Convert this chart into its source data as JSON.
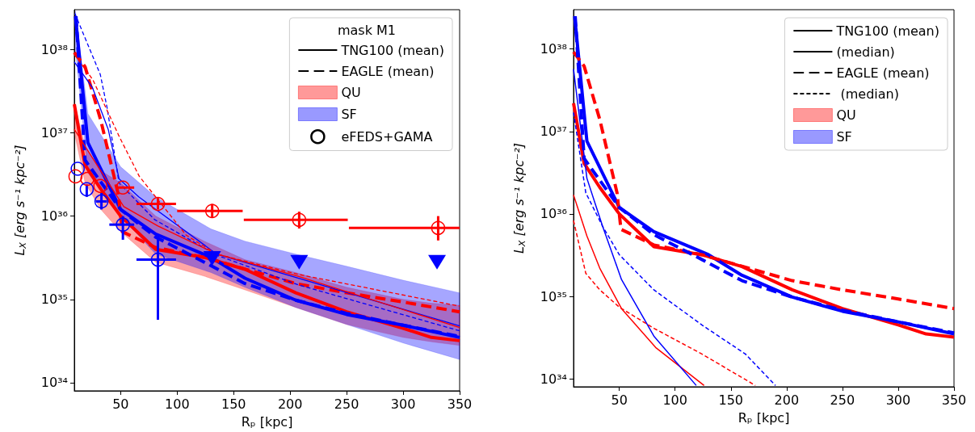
{
  "chart_data": [
    {
      "type": "line",
      "xlabel": "Rₚ [kpc]",
      "ylabel": "L$_{X}$ [erg s⁻¹ kpc⁻²]",
      "log": "y",
      "marker": "none",
      "legend": "top right",
      "legend_title": "mask M1",
      "xlim": [
        9,
        350
      ],
      "xticks": [
        50,
        100,
        150,
        200,
        250,
        300,
        350
      ],
      "ylim": [
        8e+33,
        3e+38
      ],
      "yticks": [
        {
          "value": 1e+34,
          "label": "10³⁴"
        },
        {
          "value": 1e+35,
          "label": "10³⁵"
        },
        {
          "value": 1e+36,
          "label": "10³⁶"
        },
        {
          "value": 1e+37,
          "label": "10³⁷"
        },
        {
          "value": 1e+38,
          "label": "10³⁸"
        }
      ],
      "series": [
        {
          "name": "TNG100 (mean)",
          "color": "#000000",
          "type": "line",
          "line_style": "solid"
        },
        {
          "name": "EAGLE (mean)",
          "color": "#000000",
          "type": "line",
          "line_style": "dashed"
        },
        {
          "name": "QU",
          "color": "#ff0000",
          "type": "line",
          "line_style": "solid",
          "x": [
            9,
            18.5,
            32.5,
            50,
            81,
            124,
            160,
            205,
            250,
            300,
            325,
            350
          ],
          "values": [
            2.2e+37,
            4.1e+36,
            2.1e+36,
            1e+36,
            4e+35,
            3.2e+35,
            2.3e+35,
            1.2e+35,
            7.1e+34,
            4.5e+34,
            3.5e+34,
            3.2e+34
          ],
          "lower": [
            1e+37,
            2.5e+36,
            1.2e+36,
            6.5e+35,
            2.8e+35,
            1.9e+35,
            1.3e+35,
            8e+34,
            5e+34,
            3.5e+34,
            3.1e+34,
            2.8e+34
          ],
          "upper": [
            2.3e+37,
            7e+36,
            3.5e+36,
            2.5e+36,
            1e+36,
            5e+35,
            3e+35,
            2.1e+35,
            1.4e+35,
            1e+35,
            9e+34,
            8.5e+34
          ]
        },
        {
          "name": "SF",
          "color": "#0000ff",
          "type": "line",
          "line_style": "solid",
          "x": [
            10,
            21,
            50,
            81,
            130,
            160,
            205,
            250,
            300,
            350
          ],
          "values": [
            2.5e+38,
            7.6e+36,
            1.2e+36,
            6.1e+35,
            3.2e+35,
            1.8e+35,
            9.8e+34,
            6.6e+34,
            4.9e+34,
            3.5e+34
          ],
          "lower": [
            1e+38,
            3.3e+36,
            1e+36,
            3.5e+35,
            2.1e+35,
            1.4e+35,
            8e+34,
            5e+34,
            3e+34,
            1.9e+34
          ],
          "upper": [
            2.9e+38,
            1.7e+37,
            3.9e+36,
            1.7e+36,
            7e+35,
            5e+35,
            3.5e+35,
            2.5e+35,
            1.7e+35,
            1.2e+35
          ]
        },
        {
          "color": "#ff0000",
          "type": "line",
          "line_style": "dashed",
          "x": [
            9,
            18.5,
            32.5,
            48,
            51.5,
            81,
            124,
            205,
            250,
            300,
            350
          ],
          "values": [
            9.2e+37,
            6.2e+37,
            1.4e+37,
            1.8e+36,
            6.5e+35,
            4.2e+35,
            3.2e+35,
            1.55e+35,
            1.2e+35,
            9.3e+34,
            7.1e+34
          ]
        },
        {
          "color": "#0000ff",
          "type": "line",
          "line_style": "dashed",
          "x": [
            10.5,
            18.5,
            50,
            81,
            124,
            160,
            205,
            250,
            300,
            350
          ],
          "values": [
            2.5e+38,
            4.7e+36,
            1.2e+36,
            5.6e+35,
            2.8e+35,
            1.55e+35,
            9.8e+34,
            6.8e+34,
            4.9e+34,
            3.6e+34
          ]
        },
        {
          "color": "#0000ff",
          "type": "line",
          "line_style": "solid",
          "x": [
            9,
            25,
            39,
            48.6,
            66,
            135,
            207,
            350
          ],
          "values": [
            7.1e+37,
            3.5e+37,
            1.1e+37,
            2.8e+36,
            1.7e+36,
            3.5e+35,
            1.8e+35,
            4.8e+34
          ]
        },
        {
          "color": "#0000ff",
          "type": "line",
          "line_style": "dashed",
          "x": [
            9.5,
            32,
            38,
            48.6,
            80,
            135,
            207,
            350
          ],
          "values": [
            2.7e+38,
            5e+37,
            2e+37,
            2.5e+36,
            9.1e+35,
            3.4e+35,
            1.5e+35,
            4.2e+34
          ]
        },
        {
          "color": "#ff0000",
          "type": "line",
          "line_style": "solid",
          "x": [
            9,
            33.5,
            52.8,
            83,
            135,
            207,
            350
          ],
          "values": [
            1.1e+37,
            3.3e+36,
            1.3e+36,
            7.6e+35,
            3.5e+35,
            1.9e+35,
            4.6e+34
          ]
        },
        {
          "color": "#ff0000",
          "type": "line",
          "line_style": "dashed",
          "x": [
            9,
            25.5,
            48.6,
            66.5,
            108,
            135,
            207,
            350
          ],
          "values": [
            8.8e+37,
            4.3e+37,
            9.1e+36,
            3e+36,
            5.9e+35,
            3.5e+35,
            2e+35,
            8.3e+34
          ]
        },
        {
          "name": "eFEDS+GAMA",
          "color": "#000000",
          "type": "scatter",
          "marker": "circle"
        },
        {
          "color": "#ff0000",
          "type": "scatter",
          "marker": "circle",
          "x": [
            10,
            20.5,
            32,
            52,
            83,
            131,
            208,
            331
          ],
          "values": [
            3e+36,
            2.8e+36,
            2.3e+36,
            2.2e+36,
            1.4e+36,
            1.15e+36,
            9e+35,
            7.2e+35
          ],
          "xerrors": [
            null,
            null,
            null,
            [
              47,
              62
            ],
            [
              64,
              99
            ],
            [
              100,
              158
            ],
            [
              159,
              251
            ],
            [
              252,
              350
            ]
          ],
          "errors": [
            null,
            null,
            null,
            null,
            [
              1.2e+36,
              1.65e+36
            ],
            [
              9.5e+35,
              1.4e+36
            ],
            [
              7.1e+35,
              1.13e+36
            ],
            [
              5.1e+35,
              1e+36
            ]
          ]
        },
        {
          "color": "#0000ff",
          "type": "scatter",
          "marker": "circle",
          "x": [
            12,
            20,
            33,
            52,
            83
          ],
          "values": [
            3.7e+36,
            2.1e+36,
            1.5e+36,
            7.9e+35,
            3e+35
          ],
          "xerrors": [
            null,
            null,
            [
              28,
              38
            ],
            [
              40,
              62
            ],
            [
              64,
              99
            ]
          ],
          "errors": [
            null,
            [
              1.7e+36,
              2.4e+36
            ],
            [
              1.2e+36,
              1.9e+36
            ],
            [
              5.2e+35,
              1e+36
            ],
            [
              5.7e+34,
              5.7e+35
            ]
          ]
        },
        {
          "color": "#0000ff",
          "type": "scatter",
          "marker": "triangle",
          "x": [
            131,
            208,
            330
          ],
          "values": [
            3.1e+35,
            2.8e+35,
            2.8e+35
          ]
        }
      ]
    },
    {
      "type": "line",
      "xlabel": "Rₚ [kpc]",
      "ylabel": "L$_{X}$ [erg s⁻¹ kpc⁻²]",
      "log": "y",
      "marker": "none",
      "legend": "top right",
      "xlim": [
        9,
        350
      ],
      "xticks": [
        50,
        100,
        150,
        200,
        250,
        300,
        350
      ],
      "ylim": [
        8e+33,
        3e+38
      ],
      "yticks": [
        {
          "value": 1e+34,
          "label": "10³⁴"
        },
        {
          "value": 1e+35,
          "label": "10³⁵"
        },
        {
          "value": 1e+36,
          "label": "10³⁶"
        },
        {
          "value": 1e+37,
          "label": "10³⁷"
        },
        {
          "value": 1e+38,
          "label": "10³⁸"
        }
      ],
      "series": [
        {
          "name": "TNG100 (mean)",
          "color": "#000000",
          "type": "line",
          "line_style": "solid"
        },
        {
          "name": "(median)",
          "color": "#000000",
          "type": "line",
          "line_style": "solid"
        },
        {
          "name": "EAGLE (mean)",
          "color": "#000000",
          "type": "line",
          "line_style": "dashed"
        },
        {
          "name": " (median)",
          "color": "#000000",
          "type": "line",
          "line_style": "dashed"
        },
        {
          "name": "QU",
          "color": "#ff0000",
          "type": "line",
          "line_style": "solid",
          "x": [
            9,
            18.5,
            32.5,
            50,
            81,
            124,
            160,
            205,
            250,
            300,
            325,
            350
          ],
          "values": [
            2.2e+37,
            4.1e+36,
            2.1e+36,
            1e+36,
            4e+35,
            3.2e+35,
            2.3e+35,
            1.2e+35,
            7.1e+34,
            4.5e+34,
            3.5e+34,
            3.2e+34
          ]
        },
        {
          "name": "SF",
          "color": "#0000ff",
          "type": "line",
          "line_style": "solid",
          "x": [
            10,
            21,
            50,
            81,
            130,
            160,
            205,
            250,
            300,
            350
          ],
          "values": [
            2.5e+38,
            7.6e+36,
            1.2e+36,
            6.1e+35,
            3.2e+35,
            1.8e+35,
            9.8e+34,
            6.6e+34,
            4.9e+34,
            3.5e+34
          ]
        },
        {
          "color": "#ff0000",
          "type": "line",
          "line_style": "dashed",
          "x": [
            9,
            18.5,
            32.5,
            48,
            51.5,
            81,
            124,
            205,
            250,
            300,
            350
          ],
          "values": [
            9.2e+37,
            6.2e+37,
            1.4e+37,
            1.8e+36,
            6.5e+35,
            4.2e+35,
            3.2e+35,
            1.55e+35,
            1.2e+35,
            9.3e+34,
            7.1e+34
          ]
        },
        {
          "color": "#0000ff",
          "type": "line",
          "line_style": "dashed",
          "x": [
            10.5,
            18.5,
            50,
            81,
            124,
            160,
            205,
            250,
            300,
            350
          ],
          "values": [
            2.5e+38,
            4.7e+36,
            1.2e+36,
            5.6e+35,
            2.8e+35,
            1.55e+35,
            9.8e+34,
            6.8e+34,
            4.9e+34,
            3.6e+34
          ]
        },
        {
          "color": "#ff0000",
          "type": "line",
          "line_style": "solid",
          "x": [
            9,
            21,
            32.5,
            52,
            82.6,
            126
          ],
          "values": [
            1.7e+36,
            5.4e+35,
            2.2e+35,
            7.1e+34,
            2.4e+34,
            8.3e+33
          ]
        },
        {
          "color": "#0000ff",
          "type": "line",
          "line_style": "solid",
          "x": [
            9,
            21,
            35,
            52,
            81,
            119
          ],
          "values": [
            5.7e+37,
            2.7e+36,
            7.1e+35,
            1.6e+35,
            3.3e+34,
            8.3e+33
          ]
        },
        {
          "color": "#ff0000",
          "type": "line",
          "line_style": "dashed",
          "x": [
            9,
            20,
            32.5,
            50,
            81,
            124,
            172
          ],
          "values": [
            8.3e+35,
            1.9e+35,
            1.2e+35,
            7.4e+34,
            4.1e+34,
            2e+34,
            8.3e+33
          ]
        },
        {
          "color": "#0000ff",
          "type": "line",
          "line_style": "dashed",
          "x": [
            9,
            20,
            35,
            50,
            81,
            124,
            163,
            190
          ],
          "values": [
            1.7e+37,
            1.8e+36,
            7.1e+35,
            3.2e+35,
            1.2e+35,
            4.5e+34,
            2e+34,
            8.3e+33
          ]
        }
      ]
    }
  ]
}
